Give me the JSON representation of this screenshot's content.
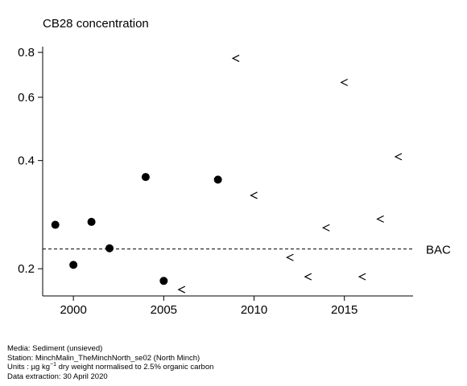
{
  "chart_data": {
    "type": "scatter",
    "title": "CB28 concentration",
    "xlabel": "",
    "ylabel": "",
    "y_scale": "log",
    "xlim": [
      1998.3,
      2018.8
    ],
    "ylim": [
      0.168,
      0.83
    ],
    "x_ticks": [
      2000,
      2005,
      2010,
      2015
    ],
    "y_ticks": [
      0.2,
      0.4,
      0.6,
      0.8
    ],
    "y_tick_labels": [
      "0.2",
      "0.4",
      "0.6",
      "0.8"
    ],
    "grid": false,
    "legend": "none",
    "series": [
      {
        "marker": "filled-circle",
        "x": [
          1999,
          2000,
          2001,
          2002,
          2004,
          2005,
          2008
        ],
        "y": [
          0.265,
          0.205,
          0.27,
          0.228,
          0.36,
          0.185,
          0.354
        ]
      },
      {
        "marker": "less-than",
        "x": [
          2006,
          2009,
          2010,
          2012,
          2013,
          2014,
          2015,
          2016,
          2017,
          2018
        ],
        "y": [
          0.175,
          0.77,
          0.32,
          0.215,
          0.19,
          0.26,
          0.66,
          0.19,
          0.275,
          0.41
        ]
      }
    ],
    "reference_line": {
      "label": "BAC",
      "value": 0.227,
      "style": "dashed"
    }
  },
  "footer": {
    "media_label": "Media:",
    "media": "Sediment (unsieved)",
    "station_label": "Station:",
    "station": "MinchMalin_TheMinchNorth_se02 (North Minch)",
    "units_label": "Units :",
    "units_prefix": "µg kg",
    "units_exp": "−1",
    "units_suffix": "dry weight normalised to 2.5% organic carbon",
    "extraction_label": "Data extraction:",
    "extraction": "30 April 2020"
  },
  "colors": {
    "ink": "#000000",
    "background": "#ffffff"
  }
}
